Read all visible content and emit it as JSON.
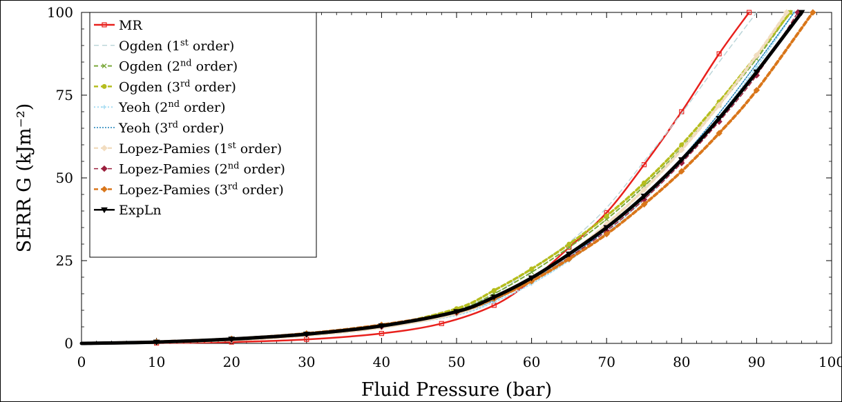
{
  "chart_data": {
    "type": "line",
    "xlabel": "Fluid Pressure (bar)",
    "ylabel": "SERR G (kJm⁻²)",
    "xlim": [
      0,
      100
    ],
    "ylim": [
      0,
      100
    ],
    "xticks": [
      0,
      10,
      20,
      30,
      40,
      50,
      60,
      70,
      80,
      90,
      100
    ],
    "yticks": [
      0,
      25,
      50,
      75,
      100
    ],
    "xtick_labels": [
      "0",
      "10",
      "20",
      "30",
      "40",
      "50",
      "60",
      "70",
      "80",
      "90",
      "100"
    ],
    "ytick_labels": [
      "0",
      "25",
      "50",
      "75",
      "100"
    ],
    "grid": false,
    "legend_position": "top-left",
    "series": [
      {
        "name": "MR",
        "color": "#e8201c",
        "dash": "",
        "marker": "square",
        "width": 2.5,
        "x": [
          0,
          10,
          20,
          30,
          40,
          48,
          55,
          60,
          65,
          70,
          75,
          80,
          85,
          89
        ],
        "y": [
          0,
          0.1,
          0.4,
          1.2,
          3.0,
          6.0,
          11.5,
          19.0,
          29.0,
          39.5,
          54.0,
          70.0,
          87.5,
          100
        ]
      },
      {
        "name": "Ogden (1st order)",
        "color": "#bcd6da",
        "dash": "7,5",
        "marker": "none",
        "width": 1.5,
        "x": [
          0,
          10,
          20,
          30,
          40,
          48,
          55,
          60,
          65,
          70,
          75,
          80,
          85,
          90
        ],
        "y": [
          0,
          0.3,
          1.0,
          2.4,
          4.7,
          8.0,
          15.0,
          22.5,
          30.5,
          41.0,
          55.0,
          69.5,
          85.0,
          100
        ]
      },
      {
        "name": "Ogden (2nd order)",
        "color": "#7aa83a",
        "dash": "6,4",
        "marker": "cross",
        "width": 2,
        "x": [
          0,
          10,
          20,
          30,
          40,
          50,
          55,
          60,
          65,
          70,
          75,
          80,
          85,
          90,
          94.5
        ],
        "y": [
          0,
          0.4,
          1.3,
          2.8,
          5.2,
          10.0,
          15.0,
          21.5,
          29.0,
          37.5,
          47.5,
          59.0,
          72.0,
          86.0,
          100
        ]
      },
      {
        "name": "Ogden (3rd order)",
        "color": "#b5bd1e",
        "dash": "6,4",
        "marker": "circle",
        "width": 3.5,
        "x": [
          0,
          10,
          20,
          30,
          40,
          50,
          55,
          60,
          65,
          70,
          75,
          80,
          85,
          90,
          94.5
        ],
        "y": [
          0,
          0.4,
          1.3,
          2.8,
          5.2,
          10.5,
          16.0,
          22.5,
          30.0,
          38.5,
          48.5,
          60.0,
          73.0,
          87.0,
          100
        ]
      },
      {
        "name": "Yeoh (2nd order)",
        "color": "#a6dcf2",
        "dash": "2,3",
        "marker": "plus",
        "width": 2,
        "x": [
          0,
          10,
          20,
          30,
          40,
          50,
          55,
          60,
          65,
          70,
          75,
          80,
          85,
          90,
          95
        ],
        "y": [
          0,
          0.3,
          1.0,
          2.4,
          4.8,
          8.5,
          12.5,
          18.0,
          25.0,
          33.5,
          43.5,
          55.0,
          68.5,
          83.5,
          100
        ]
      },
      {
        "name": "Yeoh (3rd order)",
        "color": "#1a80b8",
        "dash": "2,2",
        "marker": "none",
        "width": 1.5,
        "x": [
          0,
          10,
          20,
          30,
          40,
          50,
          55,
          60,
          65,
          70,
          75,
          80,
          85,
          90,
          95
        ],
        "y": [
          0,
          0.3,
          1.1,
          2.6,
          5.0,
          9.0,
          13.0,
          19.0,
          26.0,
          34.5,
          44.5,
          56.0,
          69.5,
          84.5,
          100
        ]
      },
      {
        "name": "Lopez-Pamies (1st order)",
        "color": "#f2ddc0",
        "dash": "6,4",
        "marker": "diamond",
        "width": 4,
        "x": [
          0,
          10,
          20,
          30,
          40,
          50,
          55,
          60,
          65,
          70,
          75,
          80,
          85,
          90,
          94
        ],
        "y": [
          0,
          0.3,
          1.0,
          2.4,
          4.8,
          9.0,
          13.5,
          19.5,
          27.0,
          36.0,
          46.5,
          58.5,
          72.0,
          87.0,
          100
        ]
      },
      {
        "name": "Lopez-Pamies (2nd order)",
        "color": "#9b1f3d",
        "dash": "6,4",
        "marker": "diamond",
        "width": 1.5,
        "x": [
          0,
          10,
          20,
          30,
          40,
          50,
          55,
          60,
          65,
          70,
          75,
          80,
          85,
          90,
          95.5
        ],
        "y": [
          0,
          0.4,
          1.2,
          2.7,
          5.1,
          9.3,
          13.5,
          19.0,
          26.0,
          34.0,
          43.5,
          54.5,
          67.0,
          81.0,
          100
        ]
      },
      {
        "name": "Lopez-Pamies (3rd order)",
        "color": "#d9761a",
        "dash": "6,4",
        "marker": "diamond",
        "width": 4,
        "x": [
          0,
          10,
          20,
          30,
          40,
          50,
          55,
          60,
          65,
          70,
          75,
          80,
          85,
          90,
          97.5
        ],
        "y": [
          0,
          0.5,
          1.4,
          3.0,
          5.6,
          9.5,
          13.5,
          18.8,
          25.5,
          33.0,
          42.0,
          52.0,
          63.5,
          76.5,
          100
        ]
      },
      {
        "name": "ExpLn",
        "color": "#000000",
        "dash": "",
        "marker": "triangle",
        "width": 5,
        "x": [
          0,
          10,
          20,
          30,
          40,
          50,
          55,
          60,
          65,
          70,
          75,
          80,
          85,
          90,
          96
        ],
        "y": [
          0,
          0.4,
          1.3,
          2.8,
          5.3,
          9.6,
          14.0,
          19.8,
          27.0,
          35.0,
          44.5,
          55.5,
          68.0,
          82.0,
          100
        ]
      }
    ],
    "legend": [
      {
        "main": "MR",
        "sup": "",
        "tail": ""
      },
      {
        "main": "Ogden (1",
        "sup": "st",
        "tail": " order)"
      },
      {
        "main": "Ogden (2",
        "sup": "nd",
        "tail": " order)"
      },
      {
        "main": "Ogden (3",
        "sup": "rd",
        "tail": " order)"
      },
      {
        "main": "Yeoh (2",
        "sup": "nd",
        "tail": " order)"
      },
      {
        "main": "Yeoh (3",
        "sup": "rd",
        "tail": " order)"
      },
      {
        "main": "Lopez-Pamies (1",
        "sup": "st",
        "tail": " order)"
      },
      {
        "main": "Lopez-Pamies (2",
        "sup": "nd",
        "tail": " order)"
      },
      {
        "main": "Lopez-Pamies (3",
        "sup": "rd",
        "tail": " order)"
      },
      {
        "main": "ExpLn",
        "sup": "",
        "tail": ""
      }
    ]
  }
}
